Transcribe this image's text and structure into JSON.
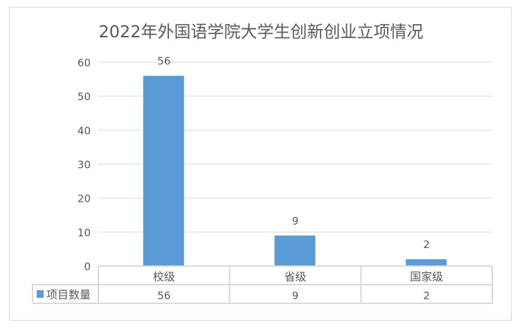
{
  "chart_data": {
    "type": "bar",
    "title": "2022年外国语学院大学生创新创业立项情况",
    "categories": [
      "校级",
      "省级",
      "国家级"
    ],
    "series": [
      {
        "name": "项目数量",
        "values": [
          56,
          9,
          2
        ],
        "color": "#5b9bd5"
      }
    ],
    "data_labels": [
      "56",
      "9",
      "2"
    ],
    "ylim": [
      0,
      60
    ],
    "yticks": [
      0,
      10,
      20,
      30,
      40,
      50,
      60
    ],
    "grid": true,
    "legend": "data-table",
    "xlabel": "",
    "ylabel": ""
  }
}
